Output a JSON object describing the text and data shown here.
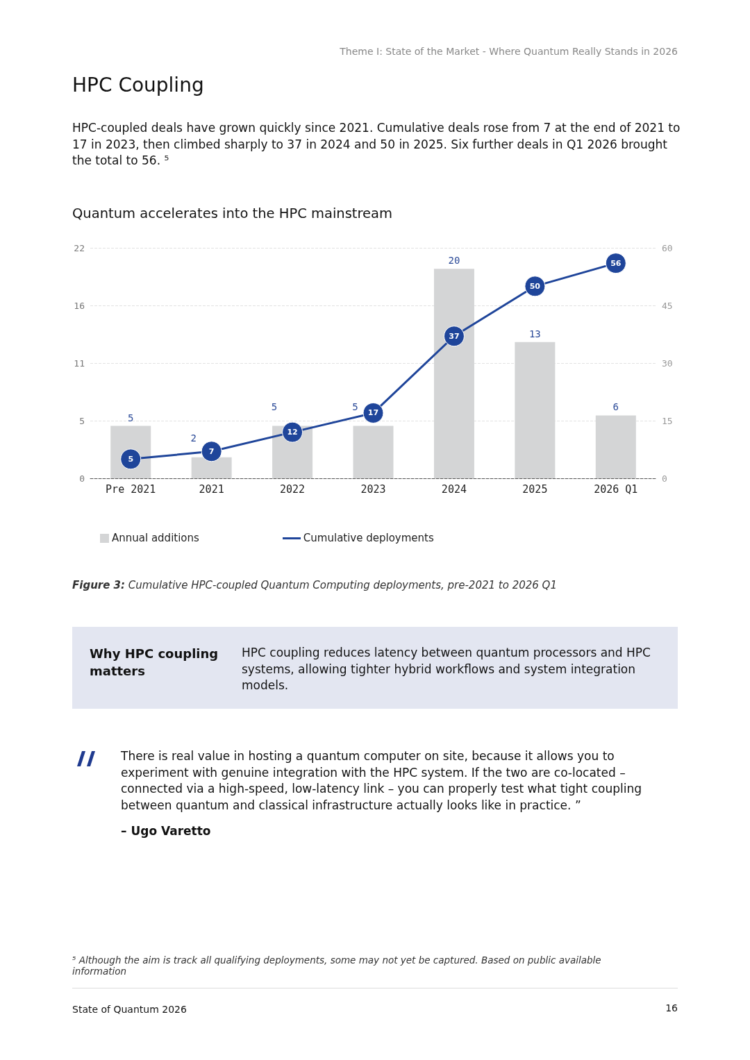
{
  "chart_data": {
    "type": "bar",
    "title": "Quantum accelerates into the HPC mainstream",
    "categories": [
      "Pre 2021",
      "2021",
      "2022",
      "2023",
      "2024",
      "2025",
      "2026 Q1"
    ],
    "series": [
      {
        "name": "Annual additions",
        "color": "#d4d5d6",
        "values": [
          5,
          2,
          5,
          5,
          20,
          13,
          6
        ]
      },
      {
        "name": "Cumulative deployments",
        "type": "line",
        "axis": "y2",
        "color": "#1f459a",
        "values": [
          5,
          7,
          12,
          17,
          37,
          50,
          56
        ]
      }
    ],
    "ylim": [
      0,
      22
    ],
    "yticks": [
      0,
      {
        "value": 5.5,
        "label": "5"
      },
      11,
      {
        "value": 16.5,
        "label": "16"
      },
      22
    ],
    "y2lim": [
      0,
      60
    ],
    "y2ticks": [
      0,
      15,
      30,
      45,
      60
    ],
    "grid": "y",
    "legend": "bottom",
    "data_labels": true,
    "marker": "circle",
    "line_style": "solid",
    "annotations": [
      "Theme I: State of the Market - Where Quantum Really Stands in 2026",
      "HPC Coupling",
      "HPC-coupled deals have grown quickly since 2021. Cumulative deals rose from 7 at the end of 2021 to 17 in 2023, then climbed sharply to 37 in 2024 and 50 in 2025. Six further deals in Q1 2026 brought the total to 56. ⁵",
      "Figure 3: Cumulative HPC-coupled Quantum Computing deployments, pre-2021 to 2026 Q1",
      "Why HPC coupling matters",
      "HPC coupling reduces latency between quantum processors and HPC systems, allowing tighter hybrid workflows and system integration models.",
      "There is real value in hosting a quantum computer on site, because it allows you to experiment with genuine integration with the HPC system. If the two are co-located – connected via a high-speed, low-latency link – you can properly test what tight coupling between quantum and classical infrastructure actually looks like in practice. ”",
      "– Ugo Varetto",
      "⁵ Although the aim is track all qualifying deployments, some may not yet be captured. Based on public available information",
      "State of Quantum 2026",
      "16"
    ]
  }
}
